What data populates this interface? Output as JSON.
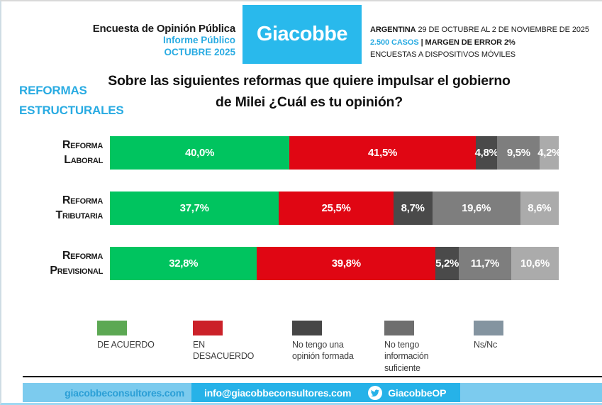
{
  "header": {
    "survey_title": "Encuesta de Opinión Pública",
    "report_type": "Informe Público",
    "report_month": "OCTUBRE 2025",
    "logo_text": "Giacobbe",
    "country": "ARGENTINA",
    "field_dates": " 29 DE OCTUBRE AL 2 DE NOVIEMBRE DE 2025",
    "cases": "2.500 CASOS",
    "separator": " | ",
    "margin_of_error": "MARGEN DE ERROR 2%",
    "methodology": "ENCUESTAS A DISPOSITIVOS MÓVILES"
  },
  "section_label": {
    "line1": "REFORMAS",
    "line2": "ESTRUCTURALES"
  },
  "question": "Sobre las siguientes reformas que quiere impulsar el gobierno de Milei ¿Cuál es tu opinión?",
  "chart_data": {
    "type": "bar",
    "orientation": "horizontal",
    "stacked": true,
    "title": "Sobre las siguientes reformas que quiere impulsar el gobierno de Milei ¿Cuál es tu opinión?",
    "categories": [
      "Reforma Laboral",
      "Reforma Tributaria",
      "Reforma Previsional"
    ],
    "series": [
      {
        "name": "De acuerdo",
        "color": "#00c45f",
        "values": [
          40.0,
          37.7,
          32.8
        ]
      },
      {
        "name": "En desacuerdo",
        "color": "#e00613",
        "values": [
          41.5,
          25.5,
          39.8
        ]
      },
      {
        "name": "No tengo una opinión formada",
        "color": "#4a4a4a",
        "values": [
          4.8,
          8.7,
          5.2
        ]
      },
      {
        "name": "No tengo información suficiente",
        "color": "#7e7e7e",
        "values": [
          9.5,
          19.6,
          11.7
        ]
      },
      {
        "name": "Ns/Nc",
        "color": "#ababab",
        "values": [
          4.2,
          8.6,
          10.6
        ]
      }
    ],
    "value_labels": [
      [
        "40,0%",
        "41,5%",
        "4,8%",
        "9,5%",
        "4,2%"
      ],
      [
        "37,7%",
        "25,5%",
        "8,7%",
        "19,6%",
        "8,6%"
      ],
      [
        "32,8%",
        "39,8%",
        "5,2%",
        "11,7%",
        "10,6%"
      ]
    ],
    "xlim": [
      0,
      100
    ],
    "value_suffix": "%",
    "grid": false,
    "legend_position": "bottom"
  },
  "legend": [
    {
      "label": "DE ACUERDO",
      "color": "#5ca853",
      "x": 135
    },
    {
      "label": "EN DESACUERDO",
      "color": "#cb2129",
      "x": 270
    },
    {
      "label": "No tengo una opinión formada",
      "color": "#464646",
      "x": 410
    },
    {
      "label": "No tengo información suficiente",
      "color": "#6e6e6e",
      "x": 540
    },
    {
      "label": "Ns/Nc",
      "color": "#8494a0",
      "x": 666
    }
  ],
  "footer": {
    "website": "giacobbeconsultores.com",
    "email": "info@giacobbeconsultores.com",
    "twitter_handle": "GiacobbeOP"
  },
  "colors": {
    "accent_cyan": "#29abe2",
    "logo_bg": "#29b9ec",
    "footer_light": "#7ccbee",
    "footer_dark": "#26b2e8"
  }
}
